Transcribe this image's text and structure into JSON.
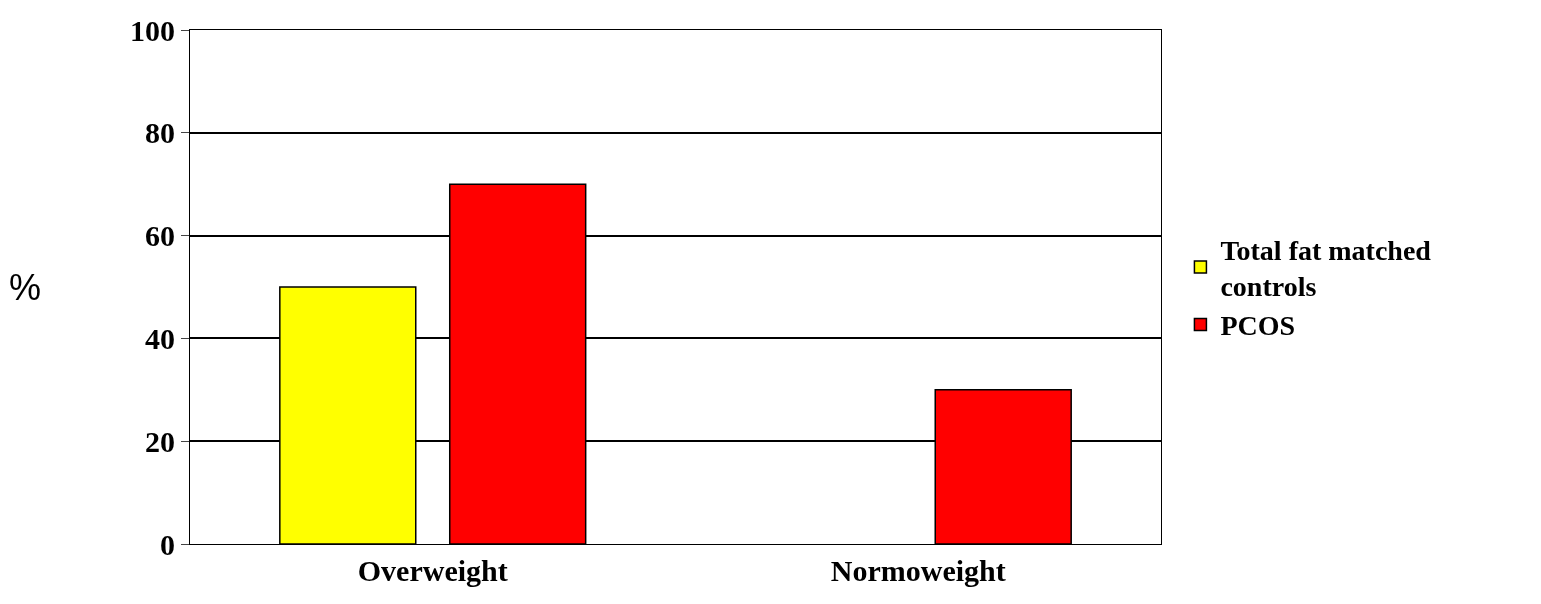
{
  "chart_data": {
    "type": "bar",
    "ylabel": "%",
    "categories": [
      "Overweight",
      "Normoweight"
    ],
    "series": [
      {
        "name": "Total fat matched controls",
        "color": "#ffff00",
        "values": [
          50,
          0
        ]
      },
      {
        "name": "PCOS",
        "color": "#ff0000",
        "values": [
          70,
          30
        ]
      }
    ],
    "ylim": [
      0,
      100
    ],
    "yticks": [
      0,
      20,
      40,
      60,
      80,
      100
    ],
    "grid": "y",
    "legend": "right"
  }
}
